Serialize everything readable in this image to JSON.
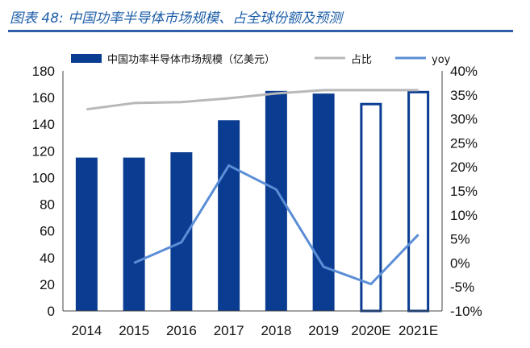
{
  "figure": {
    "title": "图表 48: 中国功率半导体市场规模、占全球份额及预测"
  },
  "chart_data": {
    "type": "bar",
    "categories": [
      "2014",
      "2015",
      "2016",
      "2017",
      "2018",
      "2019",
      "2020E",
      "2021E"
    ],
    "series": [
      {
        "name": "中国功率半导体市场规模（亿美元）",
        "type": "bar",
        "axis": "left",
        "values": [
          115,
          115,
          119,
          143,
          165,
          163,
          156,
          165
        ],
        "forecast_from_index": 6
      },
      {
        "name": "占比",
        "type": "line",
        "axis": "right",
        "values": [
          32,
          33.3,
          33.5,
          34.3,
          35.3,
          36,
          36,
          36
        ]
      },
      {
        "name": "yoy",
        "type": "line",
        "axis": "right",
        "values": [
          null,
          0,
          4.3,
          20.3,
          15.3,
          -0.8,
          -4.4,
          5.9
        ]
      }
    ],
    "y_left": {
      "min": 0,
      "max": 180,
      "ticks": [
        "0",
        "20",
        "40",
        "60",
        "80",
        "100",
        "120",
        "140",
        "160",
        "180"
      ]
    },
    "y_right": {
      "min": -10,
      "max": 40,
      "ticks": [
        "-10%",
        "-5%",
        "0%",
        "5%",
        "10%",
        "15%",
        "20%",
        "25%",
        "30%",
        "35%",
        "40%"
      ]
    },
    "grid": false,
    "legend_position": "top",
    "colors": {
      "bar": "#0a3d91",
      "share_line": "#b8b8b8",
      "yoy_line": "#5b8ed6",
      "title": "#1f5fa8"
    }
  }
}
